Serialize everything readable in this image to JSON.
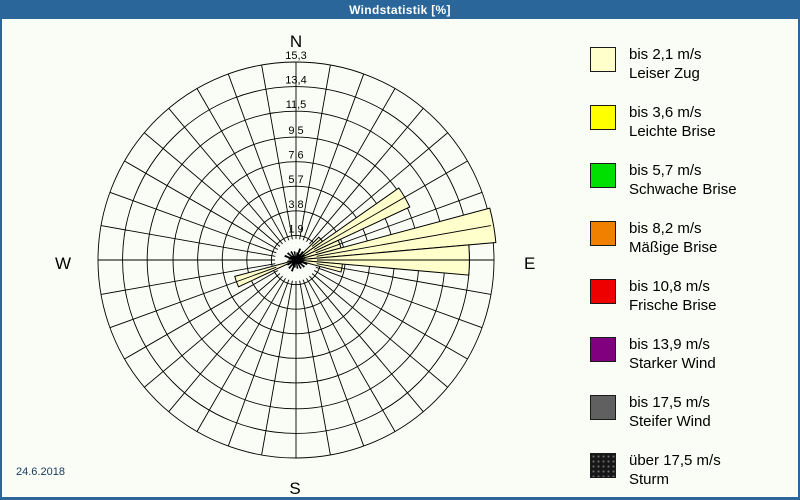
{
  "window": {
    "title": "Windstatistik [%]",
    "date_label": "24.6.2018",
    "title_bar_color": "#2A6699",
    "background_color": "#FAFDF5"
  },
  "compass": {
    "north": "N",
    "east": "E",
    "south": "S",
    "west": "W"
  },
  "chart_data": {
    "type": "windrose",
    "title": "Windstatistik [%]",
    "units": "percent frequency per 10-degree wind direction sector",
    "sector_width_deg": 10,
    "rings": 8,
    "radial_grid_step_deg": 10,
    "ring_values_percent": [
      1.9,
      3.8,
      5.7,
      7.6,
      9.5,
      11.5,
      13.4,
      15.3
    ],
    "ring_labels": [
      "1,9",
      "3,8",
      "5,7",
      "7,6",
      "9,5",
      "11,5",
      "13,4",
      "15,3"
    ],
    "max_percent": 15.3,
    "series": [
      {
        "name": "bis 2,1 m/s (Leiser Zug)",
        "color": "#FFFFCC",
        "points": [
          {
            "direction_deg": 50,
            "percent": 2.5
          },
          {
            "direction_deg": 60,
            "percent": 9.7
          },
          {
            "direction_deg": 70,
            "percent": 3.6
          },
          {
            "direction_deg": 80,
            "percent": 15.5
          },
          {
            "direction_deg": 90,
            "percent": 13.4
          },
          {
            "direction_deg": 100,
            "percent": 3.6
          },
          {
            "direction_deg": 250,
            "percent": 4.9
          }
        ]
      }
    ],
    "center_star": {
      "color": "#000000",
      "max_percent": 0.9,
      "description": "tiny stacked petals below ~1% in all directions around the hub"
    }
  },
  "legend": {
    "items": [
      {
        "speed": "bis 2,1 m/s",
        "name": "Leiser Zug",
        "color": "#FFFFCC"
      },
      {
        "speed": "bis 3,6 m/s",
        "name": "Leichte Brise",
        "color": "#FFFF00"
      },
      {
        "speed": "bis 5,7 m/s",
        "name": "Schwache Brise",
        "color": "#00E000"
      },
      {
        "speed": "bis 8,2 m/s",
        "name": "Mäßige Brise",
        "color": "#F28000"
      },
      {
        "speed": "bis 10,8 m/s",
        "name": "Frische Brise",
        "color": "#EE0000"
      },
      {
        "speed": "bis 13,9 m/s",
        "name": "Starker Wind",
        "color": "#800080"
      },
      {
        "speed": "bis 17,5 m/s",
        "name": "Steifer Wind",
        "color": "#606060"
      },
      {
        "speed": "über 17,5 m/s",
        "name": "Sturm",
        "color": "#161616",
        "texture": "dots"
      }
    ]
  }
}
